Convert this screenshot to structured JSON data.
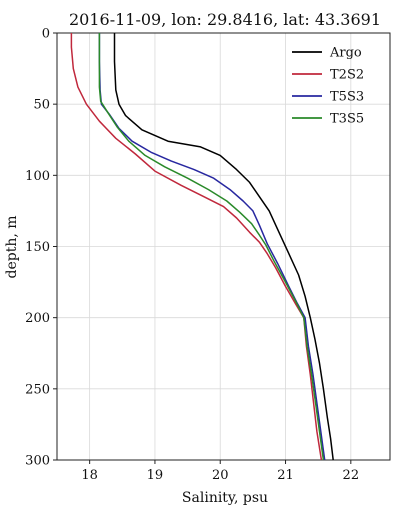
{
  "chart_data": {
    "type": "line",
    "title": "2016-11-09, lon: 29.8416,  lat: 43.3691",
    "xlabel": "Salinity, psu",
    "ylabel": "depth, m",
    "xlim": [
      17.5,
      22.6
    ],
    "ylim": [
      0,
      300
    ],
    "y_inverted": true,
    "grid": true,
    "legend_position": "top-right",
    "x_ticks": [
      18,
      19,
      20,
      21,
      22
    ],
    "y_ticks": [
      0,
      50,
      100,
      150,
      200,
      250,
      300
    ],
    "series": [
      {
        "name": "Argo",
        "color": "#000000",
        "points": [
          [
            18.38,
            0
          ],
          [
            18.38,
            20
          ],
          [
            18.4,
            40
          ],
          [
            18.45,
            50
          ],
          [
            18.55,
            58
          ],
          [
            18.8,
            68
          ],
          [
            19.2,
            76
          ],
          [
            19.7,
            80
          ],
          [
            20.0,
            86
          ],
          [
            20.25,
            96
          ],
          [
            20.45,
            105
          ],
          [
            20.6,
            115
          ],
          [
            20.75,
            125
          ],
          [
            20.9,
            140
          ],
          [
            21.05,
            155
          ],
          [
            21.2,
            170
          ],
          [
            21.3,
            185
          ],
          [
            21.38,
            200
          ],
          [
            21.45,
            215
          ],
          [
            21.52,
            232
          ],
          [
            21.58,
            250
          ],
          [
            21.64,
            270
          ],
          [
            21.69,
            285
          ],
          [
            21.73,
            300
          ]
        ]
      },
      {
        "name": "T2S2",
        "color": "#c0283c",
        "points": [
          [
            17.72,
            0
          ],
          [
            17.72,
            10
          ],
          [
            17.75,
            25
          ],
          [
            17.82,
            38
          ],
          [
            17.95,
            50
          ],
          [
            18.15,
            62
          ],
          [
            18.4,
            74
          ],
          [
            18.7,
            85
          ],
          [
            19.0,
            97
          ],
          [
            19.4,
            107
          ],
          [
            19.75,
            115
          ],
          [
            20.05,
            122
          ],
          [
            20.25,
            130
          ],
          [
            20.45,
            140
          ],
          [
            20.6,
            147
          ],
          [
            20.72,
            155
          ],
          [
            20.85,
            165
          ],
          [
            21.0,
            178
          ],
          [
            21.15,
            190
          ],
          [
            21.28,
            200
          ],
          [
            21.32,
            220
          ],
          [
            21.38,
            240
          ],
          [
            21.43,
            260
          ],
          [
            21.48,
            280
          ],
          [
            21.55,
            300
          ]
        ]
      },
      {
        "name": "T5S3",
        "color": "#2828a0",
        "points": [
          [
            18.15,
            0
          ],
          [
            18.15,
            20
          ],
          [
            18.16,
            40
          ],
          [
            18.18,
            50
          ],
          [
            18.3,
            57
          ],
          [
            18.45,
            67
          ],
          [
            18.65,
            76
          ],
          [
            18.95,
            84
          ],
          [
            19.25,
            90
          ],
          [
            19.6,
            96
          ],
          [
            19.9,
            102
          ],
          [
            20.15,
            110
          ],
          [
            20.35,
            118
          ],
          [
            20.5,
            125
          ],
          [
            20.6,
            135
          ],
          [
            20.72,
            148
          ],
          [
            20.88,
            162
          ],
          [
            21.05,
            178
          ],
          [
            21.18,
            190
          ],
          [
            21.3,
            200
          ],
          [
            21.35,
            220
          ],
          [
            21.42,
            240
          ],
          [
            21.48,
            260
          ],
          [
            21.54,
            280
          ],
          [
            21.6,
            300
          ]
        ]
      },
      {
        "name": "T3S5",
        "color": "#2a8a2a",
        "points": [
          [
            18.15,
            0
          ],
          [
            18.15,
            20
          ],
          [
            18.15,
            38
          ],
          [
            18.17,
            48
          ],
          [
            18.28,
            56
          ],
          [
            18.42,
            66
          ],
          [
            18.6,
            76
          ],
          [
            18.85,
            86
          ],
          [
            19.15,
            94
          ],
          [
            19.5,
            102
          ],
          [
            19.82,
            110
          ],
          [
            20.1,
            118
          ],
          [
            20.3,
            126
          ],
          [
            20.48,
            134
          ],
          [
            20.6,
            142
          ],
          [
            20.7,
            149
          ],
          [
            20.82,
            160
          ],
          [
            21.0,
            175
          ],
          [
            21.15,
            188
          ],
          [
            21.28,
            200
          ],
          [
            21.33,
            220
          ],
          [
            21.4,
            240
          ],
          [
            21.46,
            260
          ],
          [
            21.52,
            280
          ],
          [
            21.58,
            300
          ]
        ]
      }
    ]
  }
}
